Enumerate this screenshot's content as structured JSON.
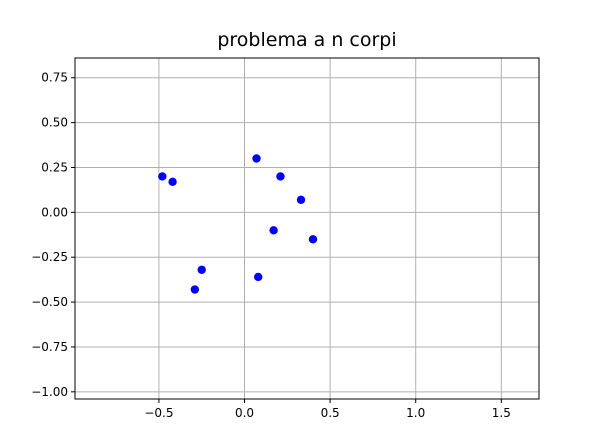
{
  "chart_data": {
    "type": "scatter",
    "title": "problema a n corpi",
    "xlabel": "",
    "ylabel": "",
    "xlim": [
      -0.99,
      1.72
    ],
    "ylim": [
      -1.04,
      0.86
    ],
    "grid": true,
    "xticks": [
      {
        "value": -0.5,
        "label": "−0.5"
      },
      {
        "value": 0.0,
        "label": "0.0"
      },
      {
        "value": 0.5,
        "label": "0.5"
      },
      {
        "value": 1.0,
        "label": "1.0"
      },
      {
        "value": 1.5,
        "label": "1.5"
      }
    ],
    "yticks": [
      {
        "value": 0.75,
        "label": "0.75"
      },
      {
        "value": 0.5,
        "label": "0.50"
      },
      {
        "value": 0.25,
        "label": "0.25"
      },
      {
        "value": 0.0,
        "label": "0.00"
      },
      {
        "value": -0.25,
        "label": "−0.25"
      },
      {
        "value": -0.5,
        "label": "−0.50"
      },
      {
        "value": -0.75,
        "label": "−0.75"
      },
      {
        "value": -1.0,
        "label": "−1.00"
      }
    ],
    "series": [
      {
        "color": "#0000ff",
        "marker": "circle",
        "x": [
          -0.48,
          -0.42,
          0.07,
          0.21,
          0.33,
          0.17,
          0.4,
          -0.25,
          -0.29,
          0.08
        ],
        "y": [
          0.2,
          0.17,
          0.3,
          0.2,
          0.07,
          -0.1,
          -0.15,
          -0.32,
          -0.43,
          -0.36
        ]
      }
    ]
  }
}
